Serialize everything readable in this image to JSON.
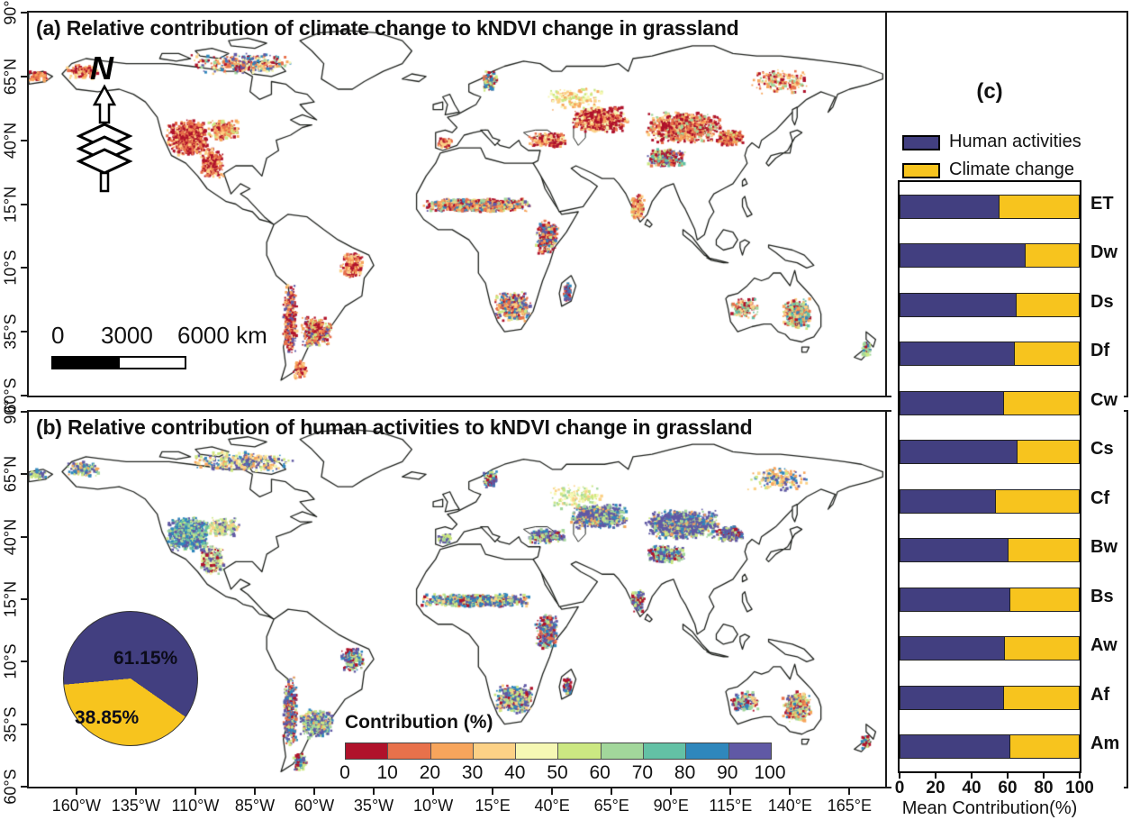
{
  "panels": {
    "a": {
      "title": "(a) Relative contribution of climate change to kNDVI change in grassland"
    },
    "b": {
      "title": "(b) Relative contribution of human activities to kNDVI change in grassland"
    },
    "c": {
      "label": "(c)"
    }
  },
  "axes": {
    "lat_ticks": [
      "90°",
      "65°N",
      "40°N",
      "15°N",
      "10°S",
      "35°S",
      "60°S"
    ],
    "lon_ticks": [
      "160°W",
      "135°W",
      "110°W",
      "85°W",
      "60°W",
      "35°W",
      "10°W",
      "15°E",
      "40°E",
      "65°E",
      "90°E",
      "115°E",
      "140°E",
      "165°E"
    ],
    "lon_values": [
      -160,
      -135,
      -110,
      -85,
      -60,
      -35,
      -10,
      15,
      40,
      65,
      90,
      115,
      140,
      165
    ]
  },
  "north": {
    "label": "N"
  },
  "scalebar": {
    "t0": "0",
    "t1": "3000",
    "t2": "6000 km"
  },
  "pie": {
    "slices": [
      {
        "label": "Human activities",
        "value": 61.15,
        "display": "61.15%",
        "color": "#423F80"
      },
      {
        "label": "Climate change",
        "value": 38.85,
        "display": "38.85%",
        "color": "#F7C41E"
      }
    ]
  },
  "colorbar": {
    "title": "Contribution (%)",
    "tick_labels": [
      "0",
      "10",
      "20",
      "30",
      "40",
      "50",
      "60",
      "70",
      "80",
      "90",
      "100"
    ],
    "colors": [
      "#B0122B",
      "#E8714B",
      "#F7A55C",
      "#FCD186",
      "#F6F8B4",
      "#CCE882",
      "#A2D79B",
      "#63C1A5",
      "#2F87BC",
      "#6059A5"
    ]
  },
  "chart_data": [
    {
      "type": "bar",
      "orientation": "horizontal",
      "stacked": true,
      "title": "(c)",
      "categories": [
        "ET",
        "Dw",
        "Ds",
        "Df",
        "Cw",
        "Cs",
        "Cf",
        "Bw",
        "Bs",
        "Aw",
        "Af",
        "Am"
      ],
      "series": [
        {
          "name": "Human activities",
          "color": "#423F80",
          "values": [
            55,
            69.5,
            64.5,
            63.5,
            57.5,
            65,
            53,
            60,
            61,
            58,
            57.5,
            61
          ]
        },
        {
          "name": "Climate change",
          "color": "#F7C41E",
          "values": [
            45,
            30.5,
            35.5,
            36.5,
            42.5,
            35,
            47,
            40,
            39,
            42,
            42.5,
            39
          ]
        }
      ],
      "xlabel": "Mean Contribution(%)",
      "xlim": [
        0,
        100
      ],
      "xticks": [
        0,
        20,
        40,
        60,
        80,
        100
      ],
      "legend_position": "top",
      "grid": false
    },
    {
      "type": "pie",
      "labels": [
        "Human activities",
        "Climate change"
      ],
      "values": [
        61.15,
        38.85
      ],
      "data_labels": [
        "61.15%",
        "38.85%"
      ],
      "colors": [
        "#423F80",
        "#F7C41E"
      ]
    }
  ]
}
